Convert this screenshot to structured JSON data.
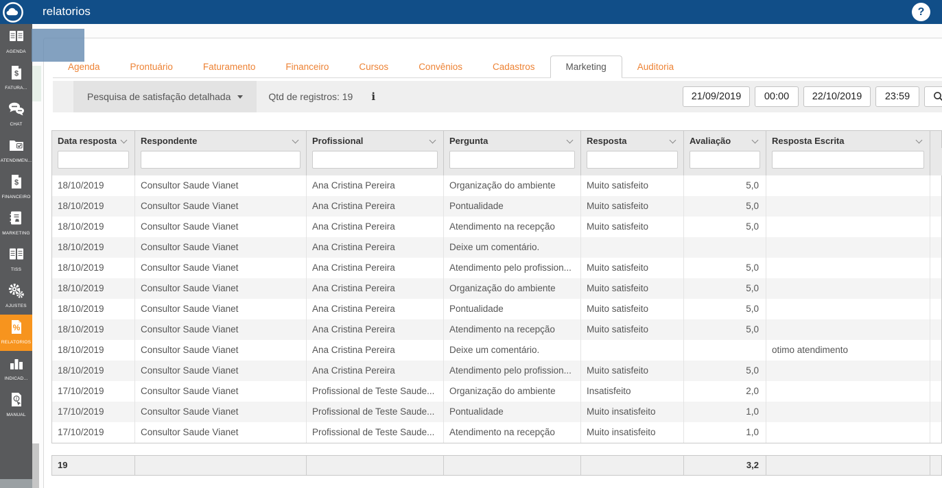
{
  "topbar": {
    "title": "relatorios",
    "help_label": "?"
  },
  "sidebar": {
    "active_index": 8,
    "items": [
      {
        "label": "AGENDA",
        "icon": "calendar-pages-icon"
      },
      {
        "label": "FATURA...",
        "icon": "invoice-doc-icon"
      },
      {
        "label": "CHAT",
        "icon": "chat-bubbles-icon"
      },
      {
        "label": "ATENDIMEN...",
        "icon": "folder-check-icon"
      },
      {
        "label": "FINANCEIRO",
        "icon": "finance-doc-icon"
      },
      {
        "label": "MARKETING",
        "icon": "contact-book-icon"
      },
      {
        "label": "TISS",
        "icon": "double-pages-icon"
      },
      {
        "label": "AJUSTES",
        "icon": "gears-icon"
      },
      {
        "label": "RELATÓRIOS",
        "icon": "percent-doc-icon"
      },
      {
        "label": "INDICAD...",
        "icon": "bar-chart-icon"
      },
      {
        "label": "MANUAL",
        "icon": "manual-doc-icon"
      }
    ]
  },
  "tabs": {
    "active": "Marketing",
    "items": [
      "Agenda",
      "Prontuário",
      "Faturamento",
      "Financeiro",
      "Cursos",
      "Convênios",
      "Cadastros",
      "Marketing",
      "Auditoria"
    ]
  },
  "toolbar": {
    "report_selector": "Pesquisa de satisfação detalhada",
    "records_label": "Qtd de registros: 19",
    "info_icon": "i",
    "date_from": "21/09/2019",
    "time_from": "00:00",
    "date_to": "22/10/2019",
    "time_to": "23:59"
  },
  "table": {
    "columns": [
      "Data resposta",
      "Respondente",
      "Profissional",
      "Pergunta",
      "Resposta",
      "Avaliação",
      "Resposta Escrita"
    ],
    "rows": [
      [
        "18/10/2019",
        "Consultor Saude Vianet",
        "Ana Cristina Pereira",
        "Organização do ambiente",
        "Muito satisfeito",
        "5,0",
        "",
        "blue"
      ],
      [
        "18/10/2019",
        "Consultor Saude Vianet",
        "Ana Cristina Pereira",
        "Pontualidade",
        "Muito satisfeito",
        "5,0",
        "",
        "blue"
      ],
      [
        "18/10/2019",
        "Consultor Saude Vianet",
        "Ana Cristina Pereira",
        "Atendimento na recepção",
        "Muito satisfeito",
        "5,0",
        "",
        "blue"
      ],
      [
        "18/10/2019",
        "Consultor Saude Vianet",
        "Ana Cristina Pereira",
        "Deixe um comentário.",
        "",
        "",
        "",
        ""
      ],
      [
        "18/10/2019",
        "Consultor Saude Vianet",
        "Ana Cristina Pereira",
        "Atendimento pelo profission...",
        "Muito satisfeito",
        "5,0",
        "",
        "blue"
      ],
      [
        "18/10/2019",
        "Consultor Saude Vianet",
        "Ana Cristina Pereira",
        "Organização do ambiente",
        "Muito satisfeito",
        "5,0",
        "",
        "blue"
      ],
      [
        "18/10/2019",
        "Consultor Saude Vianet",
        "Ana Cristina Pereira",
        "Pontualidade",
        "Muito satisfeito",
        "5,0",
        "",
        "blue"
      ],
      [
        "18/10/2019",
        "Consultor Saude Vianet",
        "Ana Cristina Pereira",
        "Atendimento na recepção",
        "Muito satisfeito",
        "5,0",
        "",
        "blue"
      ],
      [
        "18/10/2019",
        "Consultor Saude Vianet",
        "Ana Cristina Pereira",
        "Deixe um comentário.",
        "",
        "",
        "otimo atendimento",
        ""
      ],
      [
        "18/10/2019",
        "Consultor Saude Vianet",
        "Ana Cristina Pereira",
        "Atendimento pelo profission...",
        "Muito satisfeito",
        "5,0",
        "",
        "blue"
      ],
      [
        "17/10/2019",
        "Consultor Saude Vianet",
        "Profissional de Teste Saude...",
        "Organização do ambiente",
        "Insatisfeito",
        "2,0",
        "",
        "red"
      ],
      [
        "17/10/2019",
        "Consultor Saude Vianet",
        "Profissional de Teste Saude...",
        "Pontualidade",
        "Muito insatisfeito",
        "1,0",
        "",
        "red"
      ],
      [
        "17/10/2019",
        "Consultor Saude Vianet",
        "Profissional de Teste Saude...",
        "Atendimento na recepção",
        "Muito insatisfeito",
        "1,0",
        "",
        "red"
      ]
    ],
    "footer": {
      "cells": [
        "19",
        "",
        "",
        "",
        "",
        "3,2",
        ""
      ]
    }
  },
  "colors": {
    "topbar_blue": "#114e88",
    "sidebar_gray": "#595a5c",
    "active_orange": "#f7941e",
    "tab_orange": "#ed8234",
    "rating_blue": "#2323d0",
    "rating_red": "#e11d1d",
    "overlay_blue": "rgba(104,140,178,0.82)"
  }
}
